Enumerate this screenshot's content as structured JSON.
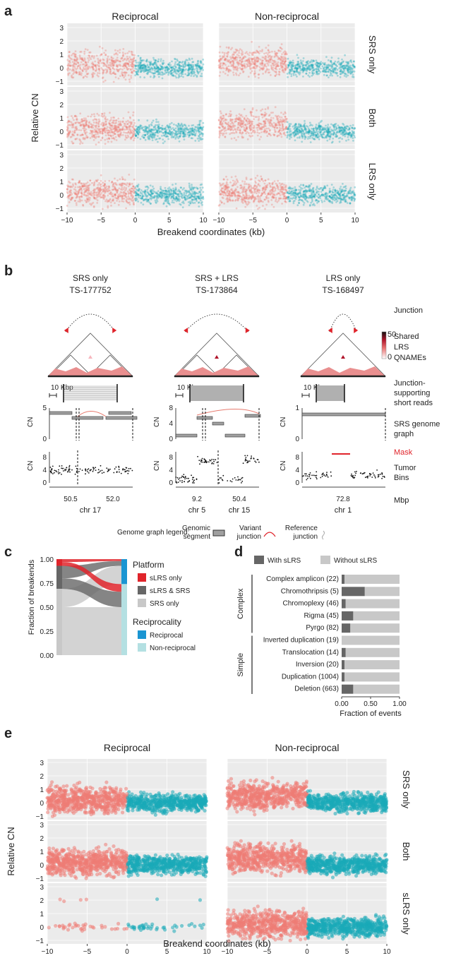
{
  "colors": {
    "recip_left": "#ef7c74",
    "recip_right": "#1aaab8",
    "red": "#e0242b",
    "dark_grey": "#666666",
    "light_grey": "#c8c8c8",
    "blue": "#1a95d2",
    "light_blue": "#b4e0e2"
  },
  "panel_a": {
    "letter": "a",
    "col_titles": [
      "Reciprocal",
      "Non-reciprocal"
    ],
    "row_titles": [
      "SRS only",
      "Both",
      "LRS only"
    ],
    "ylabel": "Relative CN",
    "xlabel": "Breakend coordinates (kb)",
    "y_ticks": [
      "3",
      "2",
      "1",
      "0",
      "−1"
    ],
    "x_ticks": [
      "−10",
      "−5",
      "0",
      "5",
      "10"
    ]
  },
  "panel_b": {
    "letter": "b",
    "events": [
      {
        "title": "SRS only",
        "id": "TS-177752"
      },
      {
        "title": "SRS + LRS",
        "id": "TS-173864"
      },
      {
        "title": "LRS only",
        "id": "TS-168497"
      }
    ],
    "row_labels": {
      "junction": "Junction",
      "shared": [
        "Shared",
        "LRS",
        "QNAMEs"
      ],
      "reads": [
        "Junction-",
        "supporting",
        "short reads"
      ],
      "graph": [
        "SRS genome",
        "graph"
      ],
      "mask": "Mask",
      "bins": [
        "Tumor",
        "Bins"
      ],
      "mbp": "Mbp"
    },
    "scale_label": "10 Kbp",
    "colorbar": {
      "max": "50",
      "min": "0"
    },
    "cn_label": "CN",
    "graph_ticks": [
      [
        "0",
        "5"
      ],
      [
        "0",
        "4",
        "8"
      ],
      [
        "0",
        "1"
      ]
    ],
    "bins_ticks": [
      [
        "0",
        "4",
        "8"
      ],
      [
        "0",
        "4",
        "8"
      ],
      [
        "0",
        "4",
        "8"
      ]
    ],
    "x_ticks": [
      [
        "50.5",
        "52.0"
      ],
      [
        "9.2",
        "50.4"
      ],
      [
        "72.8"
      ]
    ],
    "chr_labels": [
      [
        "chr 17"
      ],
      [
        "chr 5",
        "chr 15"
      ],
      [
        "chr 1"
      ]
    ],
    "legend": {
      "title": "Genome graph legend:",
      "items": [
        {
          "label": [
            "Genomic",
            "segment"
          ]
        },
        {
          "label": [
            "Variant",
            "junction"
          ]
        },
        {
          "label": [
            "Reference",
            "junction"
          ]
        }
      ]
    }
  },
  "panel_c": {
    "letter": "c",
    "ylabel": "Fraction of breakends",
    "y_ticks": [
      "1.00",
      "0.75",
      "0.50",
      "0.25",
      "0.00"
    ],
    "platform_title": "Platform",
    "platform_items": [
      "sLRS only",
      "sLRS & SRS",
      "SRS only"
    ],
    "recip_title": "Reciprocality",
    "recip_items": [
      "Reciprocal",
      "Non-reciprocal"
    ]
  },
  "chart_data": [
    {
      "type": "bar",
      "orientation": "horizontal",
      "stacked": true,
      "legend": [
        "With sLRS",
        "Without sLRS"
      ],
      "xlabel": "Fraction of events",
      "x_ticks": [
        "0.00",
        "0.50",
        "1.00"
      ],
      "groups": [
        {
          "name": "Complex",
          "categories": [
            "Complex amplicon (22)",
            "Chromothripsis (5)",
            "Chromoplexy (46)",
            "Rigma (45)",
            "Pyrgo (82)"
          ]
        },
        {
          "name": "Simple",
          "categories": [
            "Inverted duplication (19)",
            "Translocation (14)",
            "Inversion (20)",
            "Duplication (1004)",
            "Deletion (663)"
          ]
        }
      ],
      "categories": [
        "Complex amplicon (22)",
        "Chromothripsis (5)",
        "Chromoplexy (46)",
        "Rigma (45)",
        "Pyrgo (82)",
        "Inverted duplication (19)",
        "Translocation (14)",
        "Inversion (20)",
        "Duplication (1004)",
        "Deletion (663)"
      ],
      "series": [
        {
          "name": "With sLRS",
          "values": [
            0.05,
            0.4,
            0.07,
            0.2,
            0.15,
            0.0,
            0.07,
            0.05,
            0.05,
            0.2
          ]
        },
        {
          "name": "Without sLRS",
          "values": [
            0.95,
            0.6,
            0.93,
            0.8,
            0.85,
            1.0,
            0.93,
            0.95,
            0.95,
            0.8
          ]
        }
      ],
      "xlim": [
        0,
        1
      ]
    }
  ],
  "panel_d": {
    "letter": "d"
  },
  "panel_e": {
    "letter": "e",
    "col_titles": [
      "Reciprocal",
      "Non-reciprocal"
    ],
    "row_titles": [
      "SRS only",
      "Both",
      "sLRS only"
    ],
    "ylabel": "Relative CN",
    "xlabel": "Breakend coordinates (kb)",
    "y_ticks": [
      "3",
      "2",
      "1",
      "0",
      "−1"
    ],
    "x_ticks": [
      "−10",
      "−5",
      "0",
      "5",
      "10"
    ]
  }
}
